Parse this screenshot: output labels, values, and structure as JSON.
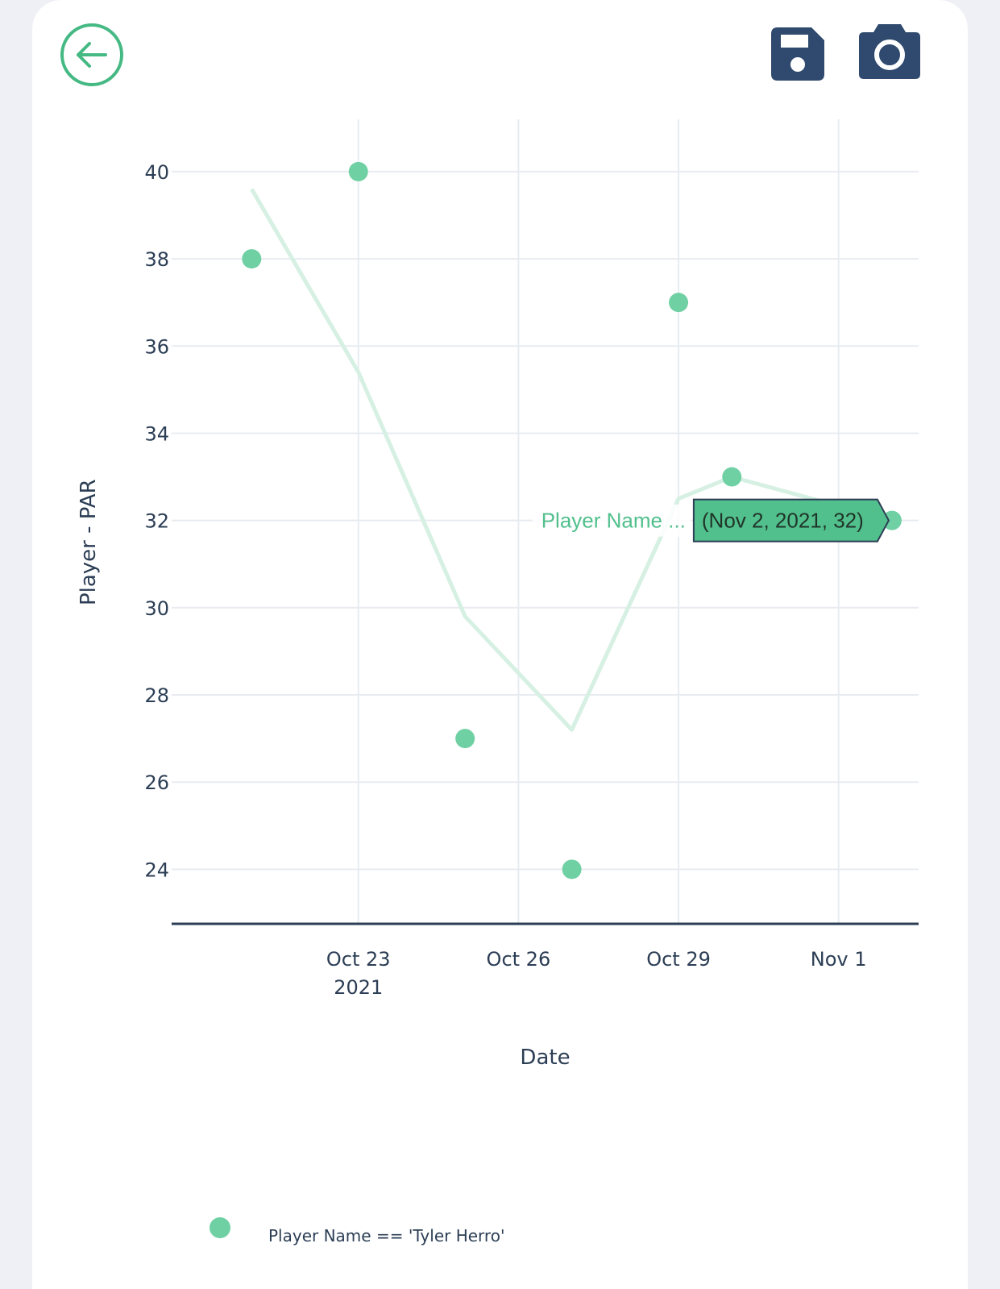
{
  "toolbar": {
    "back_icon": "arrow-left-circle-icon",
    "save_icon": "floppy-disk-icon",
    "camera_icon": "camera-icon"
  },
  "colors": {
    "accent": "#45b983",
    "marker": "#6fd0a3",
    "line": "#d6f0e3",
    "grid": "#e8ecf0",
    "axis": "#2c3e55",
    "toolbar_button": "#2f4a6e",
    "hover_bg": "#52c08d"
  },
  "chart_data": {
    "type": "scatter",
    "xlabel": "Date",
    "ylabel": "Player - PAR",
    "x_range": [
      "2021-10-19T12:00",
      "2021-11-02T12:00"
    ],
    "ylim": [
      22.75,
      41.2
    ],
    "x_ticks": [
      {
        "value": "2021-10-23",
        "label": "Oct 23",
        "sublabel": "2021"
      },
      {
        "value": "2021-10-26",
        "label": "Oct 26",
        "sublabel": ""
      },
      {
        "value": "2021-10-29",
        "label": "Oct 29",
        "sublabel": ""
      },
      {
        "value": "2021-11-01",
        "label": "Nov 1",
        "sublabel": ""
      }
    ],
    "y_ticks": [
      24,
      26,
      28,
      30,
      32,
      34,
      36,
      38,
      40
    ],
    "grid": true,
    "series": [
      {
        "name": "Player Name == 'Tyler Herro'",
        "mode": "markers",
        "points": [
          {
            "x": "2021-10-21",
            "y": 38
          },
          {
            "x": "2021-10-23",
            "y": 40
          },
          {
            "x": "2021-10-25",
            "y": 27
          },
          {
            "x": "2021-10-27",
            "y": 24
          },
          {
            "x": "2021-10-29",
            "y": 37
          },
          {
            "x": "2021-10-30",
            "y": 33
          },
          {
            "x": "2021-11-02",
            "y": 32
          }
        ]
      },
      {
        "name": "",
        "mode": "lines",
        "points": [
          {
            "x": "2021-10-21",
            "y": 39.6
          },
          {
            "x": "2021-10-23",
            "y": 35.4
          },
          {
            "x": "2021-10-25",
            "y": 29.8
          },
          {
            "x": "2021-10-27",
            "y": 27.2
          },
          {
            "x": "2021-10-29",
            "y": 32.5
          },
          {
            "x": "2021-10-30",
            "y": 33
          },
          {
            "x": "2021-11-02",
            "y": 32
          }
        ]
      }
    ],
    "hover": {
      "name": "Player Name ...",
      "value": "(Nov 2, 2021, 32)",
      "x": "2021-11-02",
      "y": 32
    },
    "legend": {
      "placement": "bottom-left",
      "entries": [
        "Player Name == 'Tyler Herro'"
      ]
    }
  }
}
